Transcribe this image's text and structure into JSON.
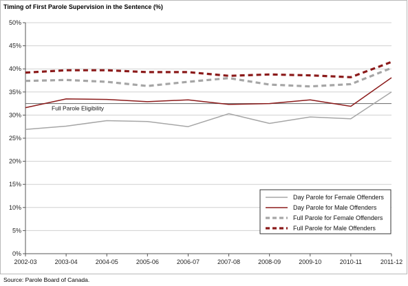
{
  "chart_data": {
    "type": "line",
    "title": "Timing of First Parole Supervision in the Sentence (%)",
    "source": "Source:  Parole Board of Canada.",
    "xlabel": "",
    "ylabel": "",
    "categories": [
      "2002-03",
      "2003-04",
      "2004-05",
      "2005-06",
      "2006-07",
      "2007-08",
      "2008-09",
      "2009-10",
      "2010-11",
      "2011-12"
    ],
    "y_ticks": [
      "0%",
      "5%",
      "10%",
      "15%",
      "20%",
      "25%",
      "30%",
      "35%",
      "40%",
      "45%",
      "50%"
    ],
    "ylim": [
      0,
      50
    ],
    "grid": "horizontal",
    "legend_position": "bottom-right",
    "reference_line": {
      "label": "Full Parole Eligibility",
      "value": 32.5,
      "color": "#666666"
    },
    "series": [
      {
        "name": "Day Parole for Female Offenders",
        "style": "solid",
        "color": "#a6a6a6",
        "values": [
          26.9,
          27.6,
          28.8,
          28.6,
          27.5,
          30.3,
          28.2,
          29.6,
          29.2,
          35.0
        ]
      },
      {
        "name": "Day Parole for Male Offenders",
        "style": "solid",
        "color": "#8b1a1a",
        "values": [
          31.6,
          33.5,
          33.4,
          32.9,
          33.3,
          32.3,
          32.5,
          33.3,
          31.9,
          38.1
        ]
      },
      {
        "name": "Full Parole for Female Offenders",
        "style": "dashed",
        "color": "#a6a6a6",
        "values": [
          37.4,
          37.6,
          37.2,
          36.3,
          37.2,
          38.0,
          36.6,
          36.2,
          36.7,
          40.2
        ]
      },
      {
        "name": "Full Parole for Male Offenders",
        "style": "dashed",
        "color": "#8b1a1a",
        "values": [
          39.2,
          39.7,
          39.7,
          39.3,
          39.3,
          38.5,
          38.8,
          38.6,
          38.2,
          41.5
        ]
      }
    ]
  }
}
